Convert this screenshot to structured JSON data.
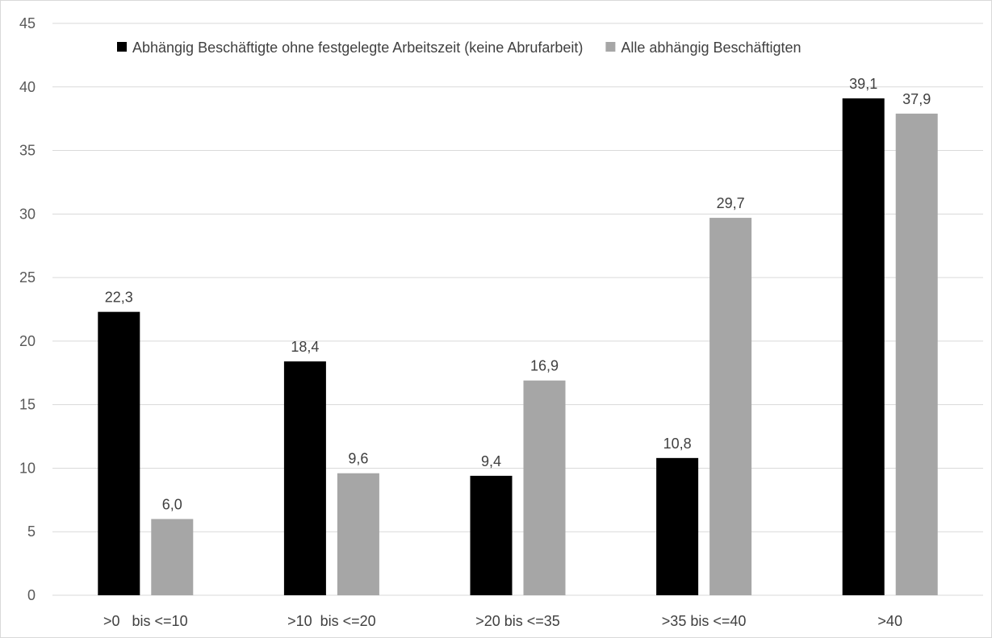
{
  "chart_data": {
    "type": "bar",
    "categories": [
      ">0   bis <=10",
      ">10  bis <=20",
      ">20 bis <=35",
      ">35 bis <=40",
      ">40"
    ],
    "series": [
      {
        "name": "Abhängig Beschäftigte ohne festgelegte Arbeitszeit (keine Abrufarbeit)",
        "values": [
          22.3,
          18.4,
          9.4,
          10.8,
          39.1
        ],
        "labels": [
          "22,3",
          "18,4",
          "9,4",
          "10,8",
          "39,1"
        ],
        "color": "#000000"
      },
      {
        "name": "Alle abhängig Beschäftigten",
        "values": [
          6.0,
          9.6,
          16.9,
          29.7,
          37.9
        ],
        "labels": [
          "6,0",
          "9,6",
          "16,9",
          "29,7",
          "37,9"
        ],
        "color": "#a6a6a6"
      }
    ],
    "ylim": [
      0,
      45
    ],
    "yticks": [
      0,
      5,
      10,
      15,
      20,
      25,
      30,
      35,
      40,
      45
    ],
    "grid": true,
    "legend": "top",
    "gridColor": "#d9d9d9"
  }
}
